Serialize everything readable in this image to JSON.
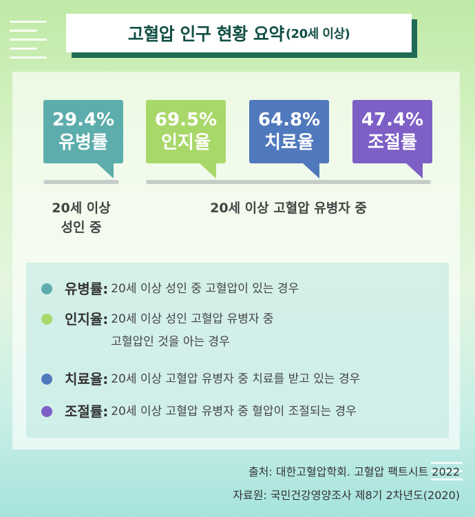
{
  "title": {
    "main": "고혈압 인구 현황 요약",
    "sub": "(20세 이상)"
  },
  "stats": [
    {
      "value": "29.4%",
      "label": "유병률",
      "color": "#5cadac"
    },
    {
      "value": "69.5%",
      "label": "인지율",
      "color": "#a9d86a"
    },
    {
      "value": "64.8%",
      "label": "치료율",
      "color": "#5079bd"
    },
    {
      "value": "47.4%",
      "label": "조절률",
      "color": "#7d5fc6"
    }
  ],
  "captions": {
    "left": "20세 이상\n성인 중",
    "right": "20세 이상 고혈압 유병자 중"
  },
  "definitions": [
    {
      "term": "유병률:",
      "desc": "20세 이상 성인 중 고혈압이 있는 경우"
    },
    {
      "term": "인지율:",
      "desc": "20세 이상 성인 고혈압 유병자 중\n고혈압인 것을 아는 경우"
    },
    {
      "term": "치료율:",
      "desc": "20세 이상 고혈압 유병자 중 치료를 받고 있는 경우"
    },
    {
      "term": "조절률:",
      "desc": "20세 이상 고혈압 유병자 중 혈압이 조절되는 경우"
    }
  ],
  "sources": {
    "line1": "출처: 대한고혈압학회. 고혈압 팩트시트 2022",
    "line2": "자료원: 국민건강영양조사 제8기 2차년도(2020)"
  }
}
